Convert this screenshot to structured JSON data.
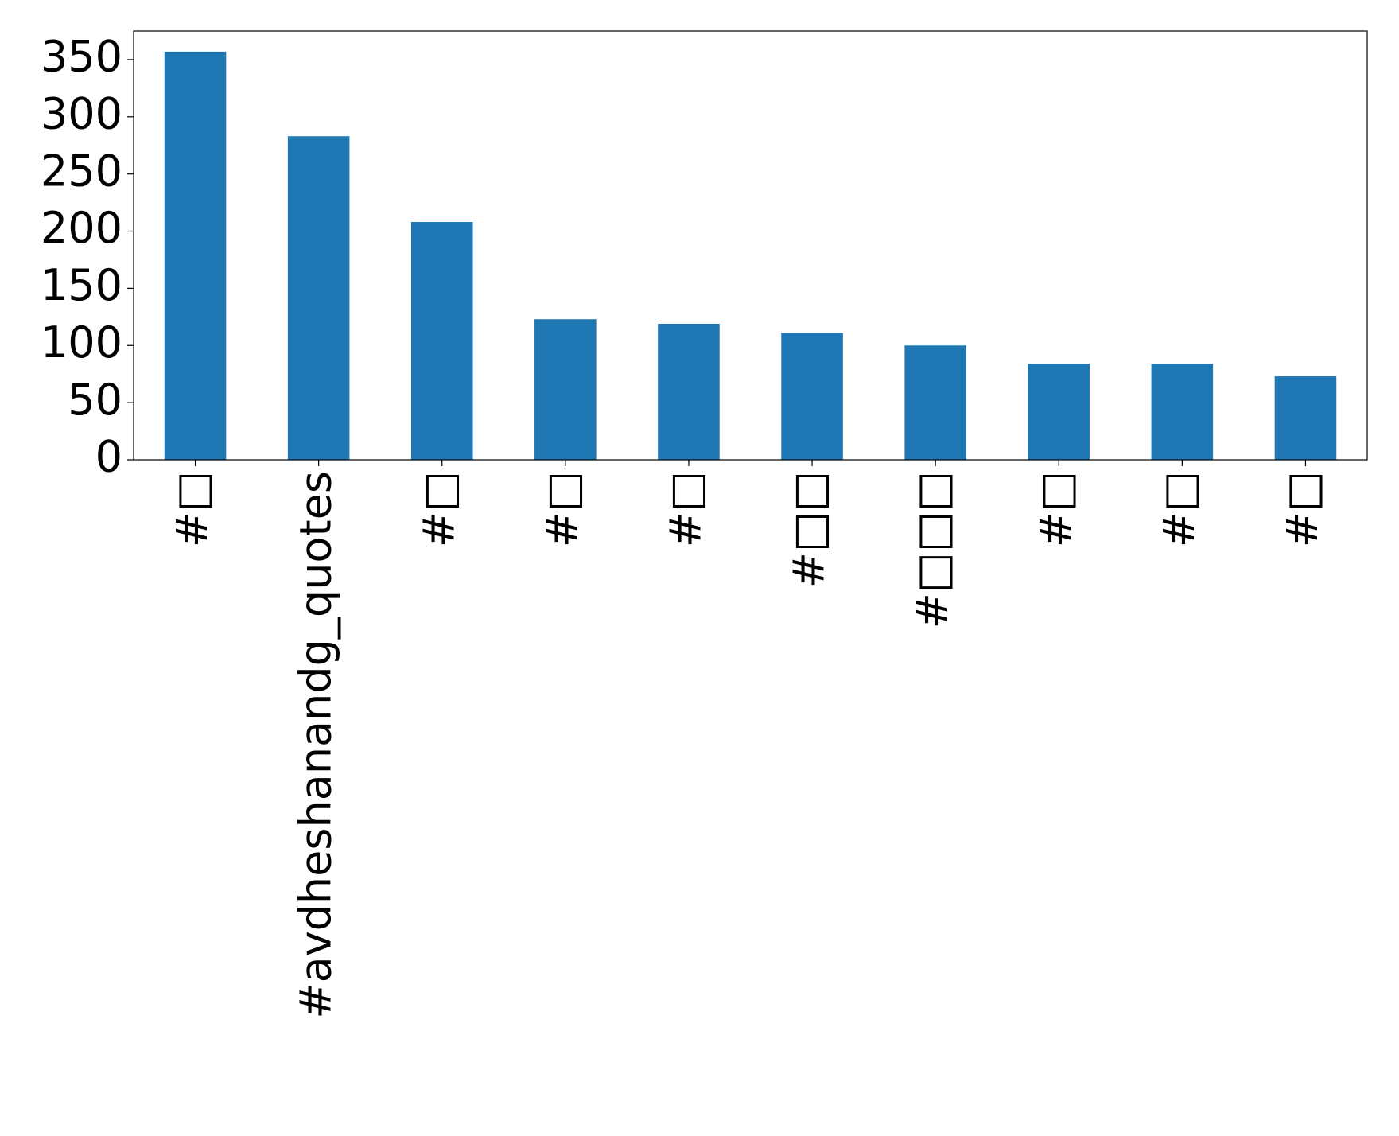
{
  "chart_data": {
    "type": "bar",
    "categories": [
      "#□",
      "#avdheshanandg_quotes",
      "#□",
      "#□",
      "#□",
      "#□□",
      "#□□□",
      "#□",
      "#□",
      "#□"
    ],
    "values": [
      357,
      283,
      208,
      123,
      119,
      111,
      100,
      84,
      84,
      73
    ],
    "color": "#1f77b4",
    "ylim": [
      0,
      375
    ],
    "yticks": [
      0,
      50,
      100,
      150,
      200,
      250,
      300,
      350
    ],
    "grid": false
  }
}
